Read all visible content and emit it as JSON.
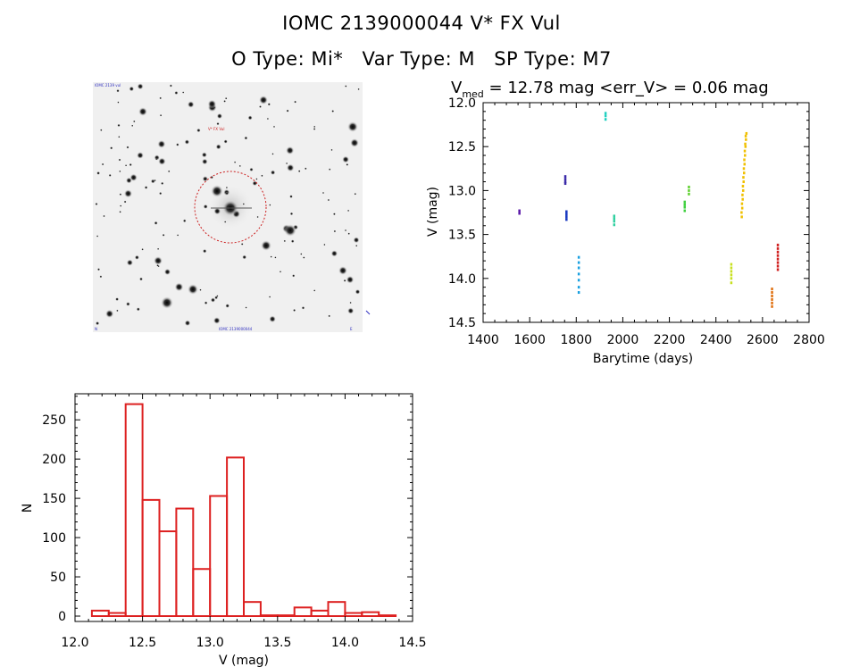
{
  "header": {
    "title_line": "IOMC 2139000044    V* FX Vul",
    "otype": "O Type: Mi*",
    "vartype": "Var Type: M",
    "sptype": "SP Type: M7"
  },
  "finder": {
    "label_top_left": "IOMC 2139 vul",
    "label_target": "V* FX Vul",
    "label_bottom": "IOMC 2139000044",
    "label_bottom_left": "N",
    "label_bottom_right": "E"
  },
  "chart_data": [
    {
      "type": "scatter",
      "title_prefix": "V",
      "title_subscript": "med",
      "title_rest": " = 12.78 mag <err_V> = 0.06 mag",
      "xlabel": "Barytime (days)",
      "ylabel": "V (mag)",
      "xlim": [
        1400,
        2800
      ],
      "ylim": [
        14.5,
        12.0
      ],
      "y_inverted": true,
      "xticks": [
        1400,
        1600,
        1800,
        2000,
        2200,
        2400,
        2600,
        2800
      ],
      "yticks": [
        12.0,
        12.5,
        13.0,
        13.5,
        14.0,
        14.5
      ],
      "series": [
        {
          "color": "#5a18a8",
          "points": [
            [
              1555,
              13.23
            ],
            [
              1555,
              13.26
            ]
          ]
        },
        {
          "color": "#3a2aa8",
          "points": [
            [
              1752,
              12.84
            ],
            [
              1752,
              12.87
            ],
            [
              1752,
              12.9
            ],
            [
              1752,
              12.92
            ]
          ]
        },
        {
          "color": "#1838c0",
          "points": [
            [
              1757,
              13.24
            ],
            [
              1757,
              13.27
            ],
            [
              1757,
              13.3
            ],
            [
              1757,
              13.33
            ]
          ]
        },
        {
          "color": "#1aa0e0",
          "points": [
            [
              1810,
              13.76
            ],
            [
              1810,
              13.82
            ],
            [
              1810,
              13.88
            ],
            [
              1810,
              13.95
            ],
            [
              1810,
              14.02
            ],
            [
              1810,
              14.1
            ],
            [
              1810,
              14.16
            ]
          ]
        },
        {
          "color": "#20d0c0",
          "points": [
            [
              1925,
              12.12
            ],
            [
              1925,
              12.15
            ],
            [
              1925,
              12.19
            ]
          ]
        },
        {
          "color": "#30d0a0",
          "points": [
            [
              1962,
              13.29
            ],
            [
              1962,
              13.32
            ],
            [
              1962,
              13.35
            ],
            [
              1962,
              13.39
            ]
          ]
        },
        {
          "color": "#40d040",
          "points": [
            [
              2265,
              13.13
            ],
            [
              2265,
              13.16
            ],
            [
              2265,
              13.19
            ],
            [
              2265,
              13.23
            ]
          ]
        },
        {
          "color": "#60d030",
          "points": [
            [
              2283,
              12.96
            ],
            [
              2283,
              13.0
            ],
            [
              2283,
              13.04
            ]
          ]
        },
        {
          "color": "#c8e020",
          "points": [
            [
              2465,
              13.84
            ],
            [
              2465,
              13.88
            ],
            [
              2465,
              13.92
            ],
            [
              2465,
              13.96
            ],
            [
              2465,
              14.0
            ],
            [
              2465,
              14.05
            ]
          ]
        },
        {
          "color": "#f0c000",
          "points": [
            [
              2510,
              13.3
            ],
            [
              2512,
              13.2
            ],
            [
              2514,
              13.1
            ],
            [
              2516,
              13.0
            ],
            [
              2518,
              12.9
            ],
            [
              2520,
              12.8
            ],
            [
              2522,
              12.7
            ],
            [
              2524,
              12.6
            ],
            [
              2526,
              12.5
            ],
            [
              2528,
              12.42
            ],
            [
              2530,
              12.35
            ],
            [
              2509,
              13.25
            ],
            [
              2511,
              13.15
            ],
            [
              2513,
              13.05
            ],
            [
              2515,
              12.95
            ],
            [
              2517,
              12.85
            ],
            [
              2519,
              12.75
            ],
            [
              2521,
              12.65
            ],
            [
              2523,
              12.55
            ],
            [
              2525,
              12.47
            ],
            [
              2527,
              12.38
            ]
          ]
        },
        {
          "color": "#e07010",
          "points": [
            [
              2640,
              14.12
            ],
            [
              2640,
              14.16
            ],
            [
              2640,
              14.2
            ],
            [
              2640,
              14.24
            ],
            [
              2640,
              14.28
            ],
            [
              2640,
              14.32
            ]
          ]
        },
        {
          "color": "#d02020",
          "points": [
            [
              2665,
              13.62
            ],
            [
              2665,
              13.66
            ],
            [
              2665,
              13.7
            ],
            [
              2665,
              13.74
            ],
            [
              2665,
              13.78
            ],
            [
              2665,
              13.82
            ],
            [
              2665,
              13.86
            ],
            [
              2665,
              13.9
            ]
          ]
        }
      ]
    },
    {
      "type": "bar",
      "style": "step-histogram",
      "xlabel": "V (mag)",
      "ylabel": "N",
      "xlim": [
        12.0,
        14.5
      ],
      "ylim": [
        0,
        290
      ],
      "xticks": [
        12.0,
        12.5,
        13.0,
        13.5,
        14.0,
        14.5
      ],
      "yticks": [
        0,
        50,
        100,
        150,
        200,
        250
      ],
      "bin_width": 0.125,
      "bin_starts": [
        12.125,
        12.25,
        12.375,
        12.5,
        12.625,
        12.75,
        12.875,
        13.0,
        13.125,
        13.25,
        13.375,
        13.5,
        13.625,
        13.75,
        13.875,
        14.0,
        14.125,
        14.25
      ],
      "values": [
        7,
        4,
        270,
        148,
        108,
        137,
        60,
        153,
        202,
        18,
        1,
        1,
        11,
        7,
        18,
        4,
        5,
        1
      ],
      "color": "#dd2020"
    }
  ]
}
